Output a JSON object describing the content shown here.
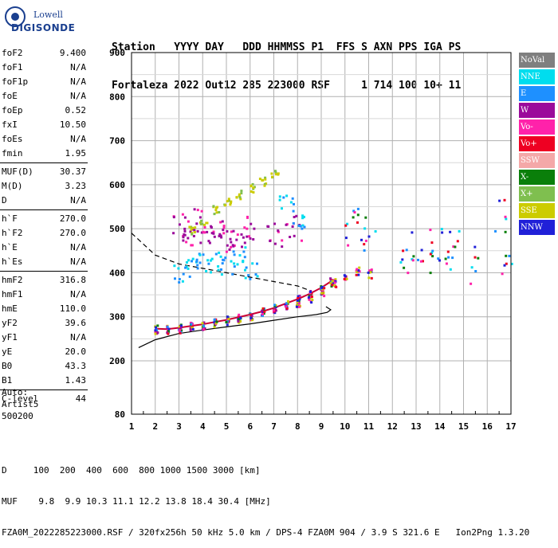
{
  "logo": {
    "line1": "Lowell",
    "line2": "DIGISONDE"
  },
  "header": {
    "row1": "Station   YYYY DAY   DDD HHMMSS P1  FFS S AXN PPS IGA PS",
    "row2": "Fortaleza 2022 Out12 285 223000 RSF     1 714 100 10+ 11"
  },
  "params": {
    "group1": [
      {
        "name": "foF2",
        "value": "9.400"
      },
      {
        "name": "foF1",
        "value": "N/A"
      },
      {
        "name": "foF1p",
        "value": "N/A"
      },
      {
        "name": "foE",
        "value": "N/A"
      },
      {
        "name": "foEp",
        "value": "0.52"
      },
      {
        "name": "fxI",
        "value": "10.50"
      },
      {
        "name": "foEs",
        "value": "N/A"
      },
      {
        "name": "fmin",
        "value": "1.95"
      }
    ],
    "group2": [
      {
        "name": "MUF(D)",
        "value": "30.37"
      },
      {
        "name": "M(D)",
        "value": "3.23"
      },
      {
        "name": "D",
        "value": "N/A"
      }
    ],
    "group3": [
      {
        "name": "h`F",
        "value": "270.0"
      },
      {
        "name": "h`F2",
        "value": "270.0"
      },
      {
        "name": "h`E",
        "value": "N/A"
      },
      {
        "name": "h`Es",
        "value": "N/A"
      }
    ],
    "group4": [
      {
        "name": "hmF2",
        "value": "316.8"
      },
      {
        "name": "hmF1",
        "value": "N/A"
      },
      {
        "name": "hmE",
        "value": "110.0"
      },
      {
        "name": "yF2",
        "value": "39.6"
      },
      {
        "name": "yF1",
        "value": "N/A"
      },
      {
        "name": "yE",
        "value": "20.0"
      },
      {
        "name": "B0",
        "value": "43.3"
      },
      {
        "name": "B1",
        "value": "1.43"
      }
    ],
    "group5": [
      {
        "name": "C-level",
        "value": "44"
      }
    ]
  },
  "auto": {
    "line1": "Auto:",
    "line2": "Artist5",
    "line3": "500200"
  },
  "legend": [
    {
      "label": "NoVal",
      "color": "#7f7f7f"
    },
    {
      "label": "NNE",
      "color": "#00ddee"
    },
    {
      "label": "E",
      "color": "#1e90ff"
    },
    {
      "label": "W",
      "color": "#9b0a9b"
    },
    {
      "label": "Vo-",
      "color": "#ff22aa"
    },
    {
      "label": "Vo+",
      "color": "#ee0022"
    },
    {
      "label": "SSW",
      "color": "#f4a8a8"
    },
    {
      "label": "X-",
      "color": "#0a7f0a"
    },
    {
      "label": "X+",
      "color": "#7fbf4f"
    },
    {
      "label": "SSE",
      "color": "#cccc00"
    },
    {
      "label": "NNW",
      "color": "#2020d8"
    }
  ],
  "footer": {
    "line1": "D     100  200  400  600  800 1000 1500 3000 [km]",
    "line2": "MUF    9.8  9.9 10.3 11.1 12.2 13.8 18.4 30.4 [MHz]",
    "line3": "FZA0M_2022285223000.RSF / 320fx256h 50 kHz 5.0 km / DPS-4 FZA0M 904 / 3.9 S 321.6 E   Ion2Png 1.3.20"
  },
  "chart_data": {
    "type": "scatter",
    "xlabel": "",
    "ylabel": "",
    "xlim": [
      1,
      17
    ],
    "ylim": [
      80,
      900
    ],
    "xticks": [
      "1",
      "2",
      "3",
      "4",
      "5",
      "6",
      "7",
      "8",
      "9",
      "10",
      "11",
      "12",
      "13",
      "14",
      "15",
      "16",
      "17"
    ],
    "yticks": [
      "80",
      "200",
      "300",
      "400",
      "500",
      "600",
      "700",
      "800",
      "900"
    ],
    "grid": true,
    "traces": [
      {
        "name": "O-trace",
        "x": [
          2.0,
          2.5,
          3.0,
          3.5,
          4.0,
          4.5,
          5.0,
          5.5,
          6.0,
          6.5,
          7.0,
          7.5,
          8.0,
          8.5,
          9.0,
          9.4
        ],
        "y": [
          273,
          272,
          275,
          279,
          283,
          288,
          293,
          299,
          305,
          312,
          320,
          330,
          340,
          352,
          366,
          380
        ]
      },
      {
        "name": "X-trace",
        "x": [
          8.0,
          8.5,
          9.0,
          9.5,
          10.0,
          10.5,
          11.0
        ],
        "y": [
          335,
          345,
          360,
          378,
          395,
          405,
          400
        ]
      },
      {
        "name": "W cluster",
        "x": [
          3.0,
          3.4,
          3.8,
          4.2,
          4.6,
          5.0,
          5.4,
          6.0,
          7.0,
          7.8
        ],
        "y": [
          510,
          495,
          520,
          480,
          505,
          470,
          490,
          500,
          485,
          505
        ]
      },
      {
        "name": "E cluster",
        "x": [
          3.0,
          3.5,
          4.0,
          4.5,
          5.0,
          5.5,
          6.0,
          7.5,
          8.0
        ],
        "y": [
          400,
          415,
          425,
          430,
          420,
          440,
          410,
          560,
          520
        ]
      },
      {
        "name": "SSE oblique",
        "x": [
          3.5,
          4.0,
          4.5,
          5.0,
          5.5,
          6.0,
          6.5,
          7.0
        ],
        "y": [
          500,
          520,
          545,
          565,
          580,
          595,
          610,
          625
        ]
      },
      {
        "name": "high-frequency echoes",
        "x": [
          10.2,
          10.6,
          11.0,
          12.5,
          13.0,
          13.4,
          13.8,
          14.2,
          14.6,
          15.5,
          16.5,
          16.8
        ],
        "y": [
          500,
          510,
          495,
          440,
          460,
          430,
          470,
          455,
          480,
          420,
          540,
          440
        ]
      }
    ],
    "profile_curves": [
      {
        "name": "model profile (solid)",
        "x": [
          1.3,
          2.0,
          3.0,
          4.0,
          5.0,
          6.0,
          7.0,
          8.0,
          8.8,
          9.25,
          9.4,
          9.2
        ],
        "y": [
          230,
          248,
          262,
          270,
          277,
          284,
          292,
          300,
          305,
          310,
          316,
          323
        ]
      },
      {
        "name": "model profile (dashed)",
        "x": [
          1.0,
          2.0,
          3.0,
          4.0,
          5.0,
          6.0,
          7.0,
          8.0,
          8.5
        ],
        "y": [
          490,
          440,
          420,
          410,
          400,
          390,
          380,
          370,
          360
        ]
      }
    ]
  }
}
